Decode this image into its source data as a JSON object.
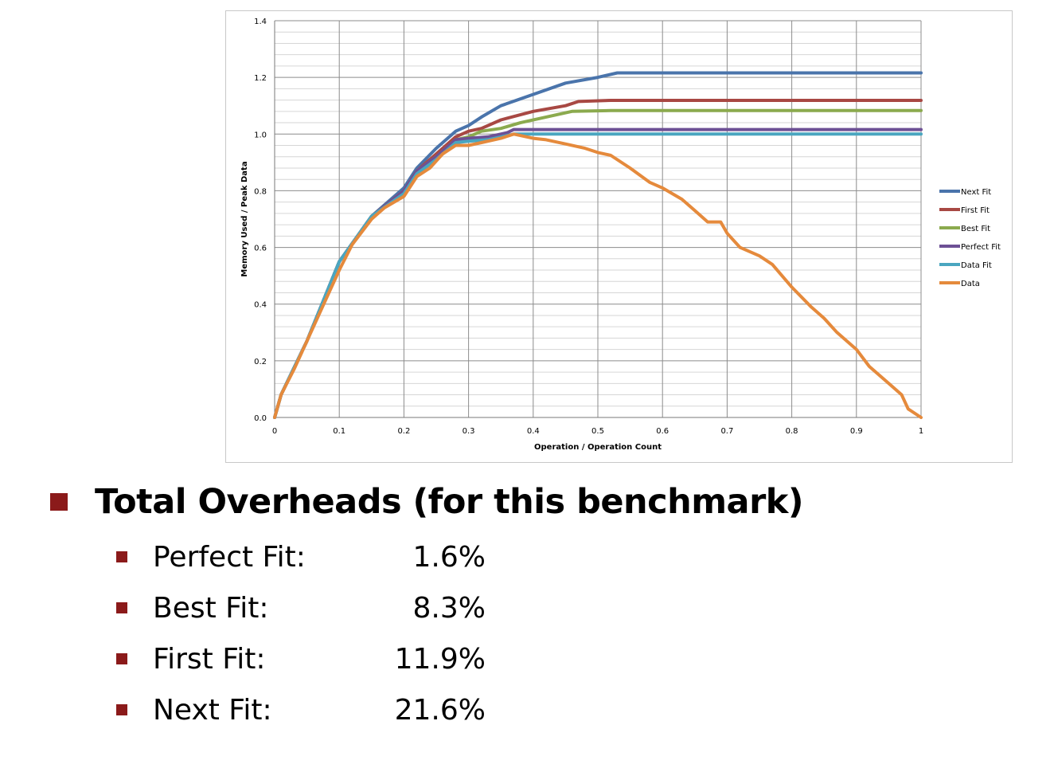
{
  "chart_data": {
    "type": "line",
    "xlabel": "Operation / Operation Count",
    "ylabel": "Memory Used / Peak Data",
    "xlim": [
      0,
      1
    ],
    "ylim": [
      0,
      1.4
    ],
    "x_ticks": [
      "0",
      "0.1",
      "0.2",
      "0.3",
      "0.4",
      "0.5",
      "0.6",
      "0.7",
      "0.8",
      "0.9",
      "1"
    ],
    "y_ticks": [
      "0.0",
      "0.2",
      "0.4",
      "0.6",
      "0.8",
      "1.0",
      "1.2",
      "1.4"
    ],
    "grid": "on",
    "legend": "right",
    "series": [
      {
        "name": "Next Fit",
        "color": "#4a74ab",
        "x": [
          0,
          0.01,
          0.05,
          0.1,
          0.15,
          0.2,
          0.22,
          0.25,
          0.28,
          0.3,
          0.32,
          0.35,
          0.4,
          0.45,
          0.5,
          0.53,
          0.6,
          0.7,
          0.8,
          0.9,
          1
        ],
        "y": [
          0,
          0.08,
          0.27,
          0.55,
          0.71,
          0.81,
          0.88,
          0.95,
          1.01,
          1.03,
          1.06,
          1.1,
          1.14,
          1.18,
          1.2,
          1.216,
          1.216,
          1.216,
          1.216,
          1.216,
          1.216
        ]
      },
      {
        "name": "First Fit",
        "color": "#a84843",
        "x": [
          0,
          0.01,
          0.05,
          0.1,
          0.15,
          0.2,
          0.22,
          0.25,
          0.28,
          0.3,
          0.32,
          0.35,
          0.4,
          0.45,
          0.47,
          0.52,
          0.6,
          0.7,
          0.8,
          0.9,
          1
        ],
        "y": [
          0,
          0.08,
          0.27,
          0.55,
          0.71,
          0.8,
          0.87,
          0.93,
          0.99,
          1.01,
          1.02,
          1.05,
          1.08,
          1.1,
          1.115,
          1.119,
          1.119,
          1.119,
          1.119,
          1.119,
          1.119
        ]
      },
      {
        "name": "Best Fit",
        "color": "#8baa4e",
        "x": [
          0,
          0.01,
          0.05,
          0.1,
          0.15,
          0.2,
          0.22,
          0.25,
          0.28,
          0.3,
          0.32,
          0.35,
          0.38,
          0.42,
          0.46,
          0.52,
          0.6,
          0.7,
          0.8,
          0.9,
          1
        ],
        "y": [
          0,
          0.08,
          0.27,
          0.55,
          0.71,
          0.8,
          0.87,
          0.92,
          0.98,
          0.99,
          1.01,
          1.02,
          1.04,
          1.06,
          1.08,
          1.083,
          1.083,
          1.083,
          1.083,
          1.083,
          1.083
        ]
      },
      {
        "name": "Perfect Fit",
        "color": "#6d5095",
        "x": [
          0,
          0.01,
          0.05,
          0.1,
          0.15,
          0.2,
          0.22,
          0.25,
          0.28,
          0.3,
          0.33,
          0.36,
          0.37,
          0.4,
          0.5,
          0.6,
          0.7,
          0.8,
          0.9,
          1
        ],
        "y": [
          0,
          0.08,
          0.27,
          0.55,
          0.71,
          0.8,
          0.87,
          0.92,
          0.98,
          0.985,
          0.99,
          1.005,
          1.016,
          1.016,
          1.016,
          1.016,
          1.016,
          1.016,
          1.016,
          1.016
        ]
      },
      {
        "name": "Data Fit",
        "color": "#4aa6c0",
        "x": [
          0,
          0.01,
          0.05,
          0.1,
          0.15,
          0.2,
          0.22,
          0.25,
          0.28,
          0.3,
          0.33,
          0.36,
          0.37,
          0.4,
          0.5,
          0.6,
          0.7,
          0.8,
          0.9,
          1
        ],
        "y": [
          0,
          0.08,
          0.27,
          0.55,
          0.71,
          0.79,
          0.86,
          0.91,
          0.97,
          0.975,
          0.98,
          0.995,
          1.0,
          1.0,
          1.0,
          1.0,
          1.0,
          1.0,
          1.0,
          1.0
        ]
      },
      {
        "name": "Data",
        "color": "#e58a3c",
        "x": [
          0,
          0.01,
          0.03,
          0.05,
          0.07,
          0.1,
          0.12,
          0.15,
          0.17,
          0.2,
          0.22,
          0.24,
          0.26,
          0.28,
          0.3,
          0.32,
          0.35,
          0.37,
          0.4,
          0.42,
          0.45,
          0.48,
          0.5,
          0.52,
          0.55,
          0.58,
          0.6,
          0.63,
          0.65,
          0.67,
          0.69,
          0.7,
          0.72,
          0.75,
          0.77,
          0.8,
          0.83,
          0.85,
          0.87,
          0.9,
          0.92,
          0.95,
          0.97,
          0.98,
          1
        ],
        "y": [
          0,
          0.08,
          0.17,
          0.27,
          0.37,
          0.52,
          0.61,
          0.7,
          0.74,
          0.78,
          0.85,
          0.88,
          0.93,
          0.96,
          0.96,
          0.97,
          0.985,
          1.0,
          0.985,
          0.98,
          0.965,
          0.95,
          0.935,
          0.925,
          0.88,
          0.83,
          0.81,
          0.77,
          0.73,
          0.69,
          0.69,
          0.65,
          0.6,
          0.57,
          0.54,
          0.46,
          0.39,
          0.35,
          0.3,
          0.24,
          0.18,
          0.12,
          0.08,
          0.03,
          0
        ]
      }
    ]
  },
  "summary": {
    "heading": "Total Overheads (for this benchmark)",
    "items": [
      {
        "label": "Perfect Fit:",
        "value": "1.6%"
      },
      {
        "label": "Best Fit:",
        "value": "8.3%"
      },
      {
        "label": "First Fit:",
        "value": "11.9%"
      },
      {
        "label": "Next Fit:",
        "value": "21.6%"
      }
    ]
  }
}
